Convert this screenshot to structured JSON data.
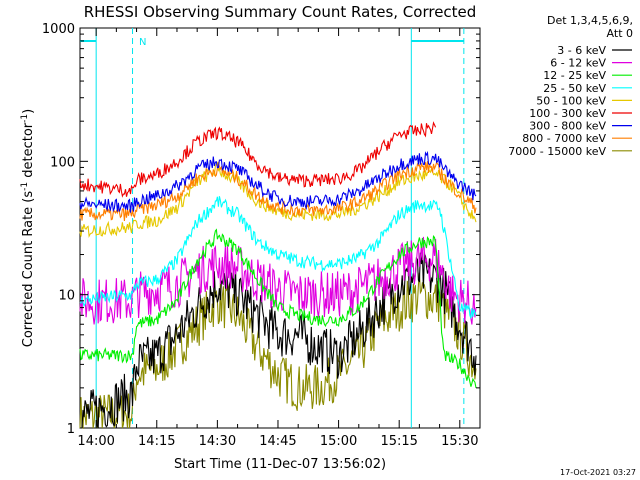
{
  "chart_data": {
    "type": "line",
    "title": "RHESSI Observing Summary Count Rates, Corrected",
    "xlabel": "Start Time (11-Dec-07 13:56:02)",
    "ylabel_main": "Corrected Count Rate (s",
    "ylabel_sup1": "-1",
    "ylabel_mid": " detector",
    "ylabel_sup2": "-1",
    "ylabel_end": ")",
    "yscale": "log",
    "ylim": [
      1,
      1000
    ],
    "xlim": [
      "13:56",
      "15:35"
    ],
    "yticks": [
      {
        "value": 1,
        "label": "1"
      },
      {
        "value": 10,
        "label": "10"
      },
      {
        "value": 100,
        "label": "100"
      },
      {
        "value": 1000,
        "label": "1000"
      }
    ],
    "xticks": [
      "14:00",
      "14:15",
      "14:30",
      "14:45",
      "15:00",
      "15:15",
      "15:30"
    ],
    "footer_date": "17-Oct-2021 03:27",
    "legend": {
      "header": [
        "Det 1,3,4,5,6,9,",
        "Att 0"
      ],
      "placement": "right"
    },
    "annotations": [
      {
        "text": "N",
        "color": "#00e5ee"
      }
    ],
    "data_gaps": [
      {
        "from": "13:56",
        "to": "14:00",
        "kind": "night"
      },
      {
        "from": "15:18",
        "to": "15:31",
        "kind": "night"
      }
    ],
    "vertical_markers": [
      {
        "time": "14:00",
        "style": "solid",
        "color": "#00e5ee"
      },
      {
        "time": "14:09",
        "style": "dashed",
        "color": "#00e5ee"
      },
      {
        "time": "15:18",
        "style": "solid",
        "color": "#00e5ee"
      },
      {
        "time": "15:31",
        "style": "dashed",
        "color": "#00e5ee"
      }
    ],
    "series": [
      {
        "name": "3 - 6 keV",
        "color": "#000000",
        "points": [
          [
            "13:56",
            1.2
          ],
          [
            "14:09",
            1.8
          ],
          [
            "14:10",
            3.0
          ],
          [
            "14:15",
            3.5
          ],
          [
            "14:20",
            5
          ],
          [
            "14:25",
            8
          ],
          [
            "14:30",
            12
          ],
          [
            "14:35",
            10
          ],
          [
            "14:40",
            7
          ],
          [
            "14:45",
            5
          ],
          [
            "14:50",
            5
          ],
          [
            "14:55",
            4
          ],
          [
            "15:00",
            3.5
          ],
          [
            "15:05",
            5
          ],
          [
            "15:10",
            8
          ],
          [
            "15:15",
            12
          ],
          [
            "15:20",
            14
          ],
          [
            "15:25",
            13
          ],
          [
            "15:30",
            6
          ],
          [
            "15:34",
            3.5
          ]
        ]
      },
      {
        "name": "6 - 12 keV",
        "color": "#e000e0",
        "points": [
          [
            "13:56",
            9
          ],
          [
            "14:09",
            9
          ],
          [
            "14:10",
            10
          ],
          [
            "14:15",
            11
          ],
          [
            "14:20",
            12
          ],
          [
            "14:25",
            15
          ],
          [
            "14:30",
            17
          ],
          [
            "14:35",
            16
          ],
          [
            "14:40",
            13
          ],
          [
            "14:45",
            11
          ],
          [
            "14:50",
            10
          ],
          [
            "14:55",
            10
          ],
          [
            "15:00",
            10
          ],
          [
            "15:05",
            11
          ],
          [
            "15:10",
            13
          ],
          [
            "15:15",
            16
          ],
          [
            "15:20",
            18
          ],
          [
            "15:24",
            19
          ],
          [
            "15:28",
            10
          ],
          [
            "15:34",
            8
          ]
        ]
      },
      {
        "name": "12 - 25 keV",
        "color": "#00ee00",
        "points": [
          [
            "13:56",
            3.5
          ],
          [
            "14:09",
            3.5
          ],
          [
            "14:10",
            6
          ],
          [
            "14:15",
            6.5
          ],
          [
            "14:20",
            9
          ],
          [
            "14:25",
            18
          ],
          [
            "14:30",
            28
          ],
          [
            "14:35",
            22
          ],
          [
            "14:40",
            13
          ],
          [
            "14:45",
            8
          ],
          [
            "14:50",
            7
          ],
          [
            "14:55",
            6.5
          ],
          [
            "15:00",
            6.5
          ],
          [
            "15:05",
            8
          ],
          [
            "15:10",
            13
          ],
          [
            "15:15",
            20
          ],
          [
            "15:20",
            25
          ],
          [
            "15:24",
            25
          ],
          [
            "15:26",
            3.5
          ],
          [
            "15:30",
            3
          ],
          [
            "15:34",
            2
          ]
        ]
      },
      {
        "name": "25 - 50 keV",
        "color": "#00ffff",
        "points": [
          [
            "13:56",
            9
          ],
          [
            "14:09",
            10
          ],
          [
            "14:10",
            12
          ],
          [
            "14:15",
            13
          ],
          [
            "14:20",
            18
          ],
          [
            "14:25",
            35
          ],
          [
            "14:30",
            50
          ],
          [
            "14:35",
            40
          ],
          [
            "14:40",
            25
          ],
          [
            "14:45",
            20
          ],
          [
            "14:50",
            18
          ],
          [
            "14:55",
            17
          ],
          [
            "15:00",
            17
          ],
          [
            "15:05",
            19
          ],
          [
            "15:10",
            25
          ],
          [
            "15:15",
            40
          ],
          [
            "15:20",
            48
          ],
          [
            "15:25",
            45
          ],
          [
            "15:30",
            8
          ],
          [
            "15:34",
            7
          ]
        ]
      },
      {
        "name": "50 - 100 keV",
        "color": "#e6c800",
        "points": [
          [
            "13:56",
            30
          ],
          [
            "14:09",
            32
          ],
          [
            "14:10",
            34
          ],
          [
            "14:15",
            36
          ],
          [
            "14:20",
            45
          ],
          [
            "14:25",
            70
          ],
          [
            "14:30",
            88
          ],
          [
            "14:35",
            70
          ],
          [
            "14:40",
            50
          ],
          [
            "14:45",
            42
          ],
          [
            "14:50",
            40
          ],
          [
            "14:55",
            40
          ],
          [
            "15:00",
            40
          ],
          [
            "15:05",
            45
          ],
          [
            "15:10",
            55
          ],
          [
            "15:15",
            70
          ],
          [
            "15:20",
            78
          ],
          [
            "15:24",
            80
          ],
          [
            "15:28",
            65
          ],
          [
            "15:34",
            35
          ]
        ]
      },
      {
        "name": "100 - 300 keV",
        "color": "#ee0000",
        "points": [
          [
            "13:56",
            68
          ],
          [
            "14:05",
            62
          ],
          [
            "14:09",
            60
          ],
          [
            "14:10",
            72
          ],
          [
            "14:15",
            80
          ],
          [
            "14:20",
            100
          ],
          [
            "14:25",
            140
          ],
          [
            "14:30",
            165
          ],
          [
            "14:35",
            140
          ],
          [
            "14:40",
            95
          ],
          [
            "14:45",
            75
          ],
          [
            "14:50",
            72
          ],
          [
            "14:55",
            72
          ],
          [
            "15:00",
            74
          ],
          [
            "15:05",
            85
          ],
          [
            "15:10",
            120
          ],
          [
            "15:15",
            160
          ],
          [
            "15:20",
            170
          ],
          [
            "15:24",
            180
          ]
        ]
      },
      {
        "name": "300 - 800 keV",
        "color": "#0000ee",
        "points": [
          [
            "13:56",
            48
          ],
          [
            "14:09",
            46
          ],
          [
            "14:10",
            50
          ],
          [
            "14:15",
            55
          ],
          [
            "14:20",
            65
          ],
          [
            "14:25",
            88
          ],
          [
            "14:30",
            100
          ],
          [
            "14:35",
            88
          ],
          [
            "14:40",
            65
          ],
          [
            "14:45",
            52
          ],
          [
            "14:50",
            50
          ],
          [
            "14:55",
            50
          ],
          [
            "15:00",
            52
          ],
          [
            "15:05",
            60
          ],
          [
            "15:10",
            75
          ],
          [
            "15:15",
            95
          ],
          [
            "15:20",
            105
          ],
          [
            "15:24",
            105
          ],
          [
            "15:28",
            75
          ],
          [
            "15:34",
            55
          ]
        ]
      },
      {
        "name": "800 - 7000 keV",
        "color": "#ff7f00",
        "points": [
          [
            "13:56",
            40
          ],
          [
            "14:09",
            40
          ],
          [
            "14:10",
            43
          ],
          [
            "14:15",
            47
          ],
          [
            "14:20",
            55
          ],
          [
            "14:25",
            75
          ],
          [
            "14:30",
            88
          ],
          [
            "14:35",
            75
          ],
          [
            "14:40",
            55
          ],
          [
            "14:45",
            45
          ],
          [
            "14:50",
            43
          ],
          [
            "14:55",
            43
          ],
          [
            "15:00",
            44
          ],
          [
            "15:05",
            50
          ],
          [
            "15:10",
            62
          ],
          [
            "15:15",
            80
          ],
          [
            "15:20",
            90
          ],
          [
            "15:24",
            90
          ],
          [
            "15:28",
            65
          ],
          [
            "15:34",
            45
          ]
        ]
      },
      {
        "name": "7000 - 15000 keV",
        "color": "#8b8b00",
        "points": [
          [
            "13:56",
            1.2
          ],
          [
            "14:09",
            1.3
          ],
          [
            "14:10",
            2.5
          ],
          [
            "14:15",
            2.8
          ],
          [
            "14:20",
            4
          ],
          [
            "14:25",
            6
          ],
          [
            "14:30",
            9
          ],
          [
            "14:35",
            7
          ],
          [
            "14:40",
            4
          ],
          [
            "14:45",
            2.5
          ],
          [
            "14:50",
            2
          ],
          [
            "14:55",
            2
          ],
          [
            "15:00",
            2.5
          ],
          [
            "15:05",
            3.5
          ],
          [
            "15:10",
            6
          ],
          [
            "15:15",
            8
          ],
          [
            "15:20",
            10
          ],
          [
            "15:25",
            9
          ],
          [
            "15:30",
            5
          ],
          [
            "15:34",
            2.8
          ]
        ]
      }
    ]
  }
}
